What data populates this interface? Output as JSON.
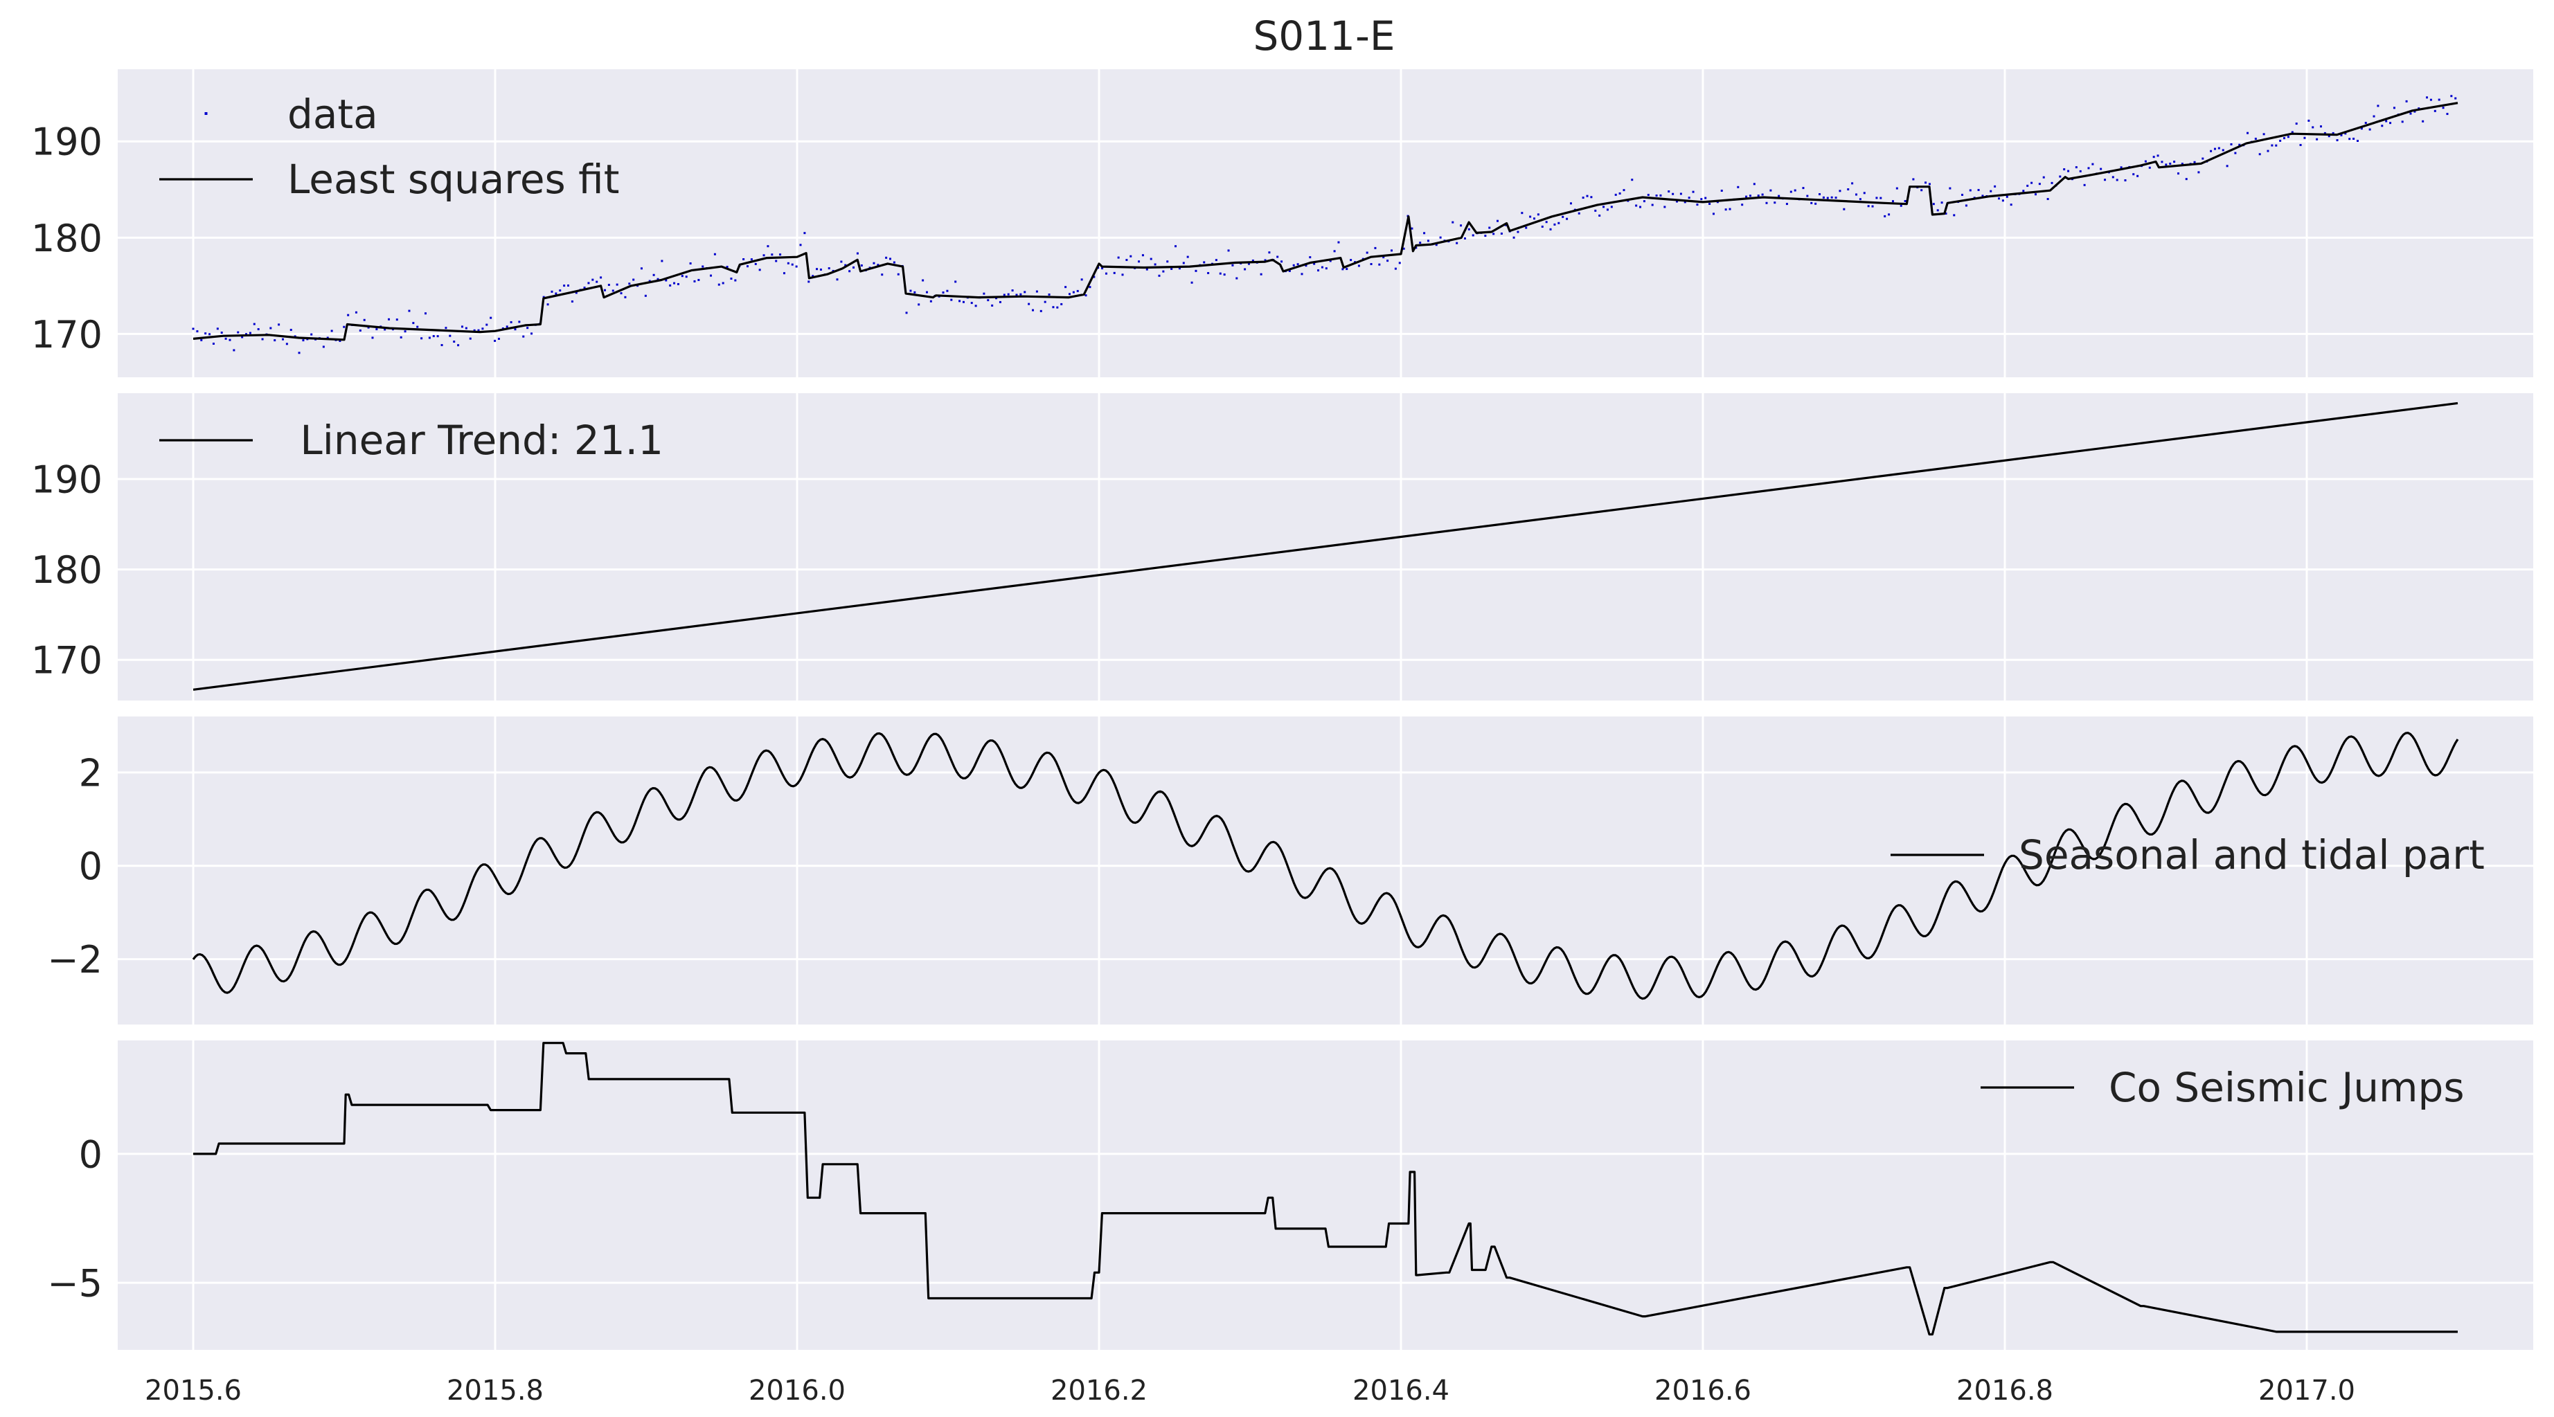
{
  "figure": {
    "title": "S011-E"
  },
  "colors": {
    "panel_bg": "#eaeaf2",
    "grid": "#ffffff",
    "line": "#000000",
    "data_dots": "#0000cc",
    "text": "#222222"
  },
  "chart_data": [
    {
      "type": "scatter",
      "title": "S011-E",
      "xlim": [
        2015.55,
        2017.15
      ],
      "ylim": [
        165.5,
        197.5
      ],
      "yticks": [
        170,
        180,
        190
      ],
      "grid": true,
      "legend": {
        "placement": "top-left",
        "entries": [
          "data",
          "Least squares fit"
        ]
      },
      "series": [
        {
          "name": "data",
          "style": "points",
          "color": "#0000cc"
        },
        {
          "name": "Least squares fit",
          "style": "line",
          "x": [
            2015.6,
            2015.62,
            2015.65,
            2015.67,
            2015.7,
            2015.702,
            2015.73,
            2015.76,
            2015.79,
            2015.8,
            2015.82,
            2015.83,
            2015.832,
            2015.85,
            2015.87,
            2015.872,
            2015.89,
            2015.91,
            2015.93,
            2015.95,
            2015.96,
            2015.962,
            2015.98,
            2016.0,
            2016.006,
            2016.008,
            2016.02,
            2016.03,
            2016.04,
            2016.042,
            2016.06,
            2016.07,
            2016.072,
            2016.09,
            2016.092,
            2016.12,
            2016.15,
            2016.18,
            2016.19,
            2016.2,
            2016.202,
            2016.23,
            2016.26,
            2016.29,
            2016.31,
            2016.315,
            2016.32,
            2016.322,
            2016.34,
            2016.36,
            2016.362,
            2016.38,
            2016.4,
            2016.405,
            2016.408,
            2016.41,
            2016.42,
            2016.44,
            2016.445,
            2016.45,
            2016.46,
            2016.47,
            2016.472,
            2016.5,
            2016.53,
            2016.56,
            2016.6,
            2016.64,
            2016.68,
            2016.72,
            2016.735,
            2016.737,
            2016.75,
            2016.752,
            2016.76,
            2016.762,
            2016.79,
            2016.83,
            2016.84,
            2016.842,
            2016.86,
            2016.89,
            2016.9,
            2016.902,
            2016.93,
            2016.96,
            2016.99,
            2017.02,
            2017.05,
            2017.07,
            2017.1
          ],
          "values": [
            169.5,
            169.8,
            169.9,
            169.6,
            169.4,
            171.0,
            170.6,
            170.4,
            170.2,
            170.3,
            170.9,
            171.0,
            173.7,
            174.3,
            175.0,
            173.8,
            175.0,
            175.6,
            176.6,
            177.0,
            176.4,
            177.2,
            177.9,
            178.0,
            178.4,
            175.8,
            176.2,
            176.8,
            177.7,
            176.5,
            177.3,
            177.0,
            174.2,
            173.8,
            174.0,
            173.8,
            173.9,
            173.8,
            174.1,
            177.3,
            177.0,
            176.9,
            177.0,
            177.4,
            177.5,
            177.7,
            177.2,
            176.5,
            177.4,
            177.9,
            176.9,
            178.0,
            178.3,
            182.2,
            178.6,
            179.2,
            179.3,
            180.0,
            181.6,
            180.5,
            180.6,
            181.5,
            180.7,
            182.2,
            183.4,
            184.2,
            183.7,
            184.2,
            183.9,
            183.6,
            183.5,
            185.3,
            185.3,
            182.4,
            182.5,
            183.6,
            184.3,
            184.9,
            186.3,
            186.1,
            186.6,
            187.5,
            187.9,
            187.3,
            187.7,
            189.8,
            190.8,
            190.7,
            192.2,
            193.2,
            194.0
          ]
        }
      ]
    },
    {
      "type": "line",
      "xlim": [
        2015.55,
        2017.15
      ],
      "ylim": [
        165.5,
        199.5
      ],
      "yticks": [
        170,
        180,
        190
      ],
      "grid": true,
      "legend": {
        "placement": "top-left",
        "entries": [
          " Linear Trend: 21.1"
        ]
      },
      "series": [
        {
          "name": " Linear Trend: 21.1",
          "x": [
            2015.6,
            2017.1
          ],
          "values": [
            166.7,
            198.4
          ]
        }
      ]
    },
    {
      "type": "line",
      "xlim": [
        2015.55,
        2017.15
      ],
      "ylim": [
        -3.4,
        3.2
      ],
      "yticks": [
        -2,
        0,
        2
      ],
      "grid": true,
      "legend": {
        "placement": "center-right",
        "entries": [
          "Seasonal and tidal part"
        ]
      },
      "series": [
        {
          "name": "Seasonal and tidal part",
          "model": {
            "annual_amplitude": 2.4,
            "period_years": 1.0,
            "peak_at": 2016.07,
            "ripple_amplitude": 0.45,
            "ripple_period_years": 0.0375,
            "x_range": [
              2015.6,
              2017.1
            ]
          }
        }
      ]
    },
    {
      "type": "line",
      "xlim": [
        2015.55,
        2017.15
      ],
      "ylim": [
        -7.6,
        4.4
      ],
      "yticks": [
        -5,
        0
      ],
      "xticks": [
        2015.6,
        2015.8,
        2016.0,
        2016.2,
        2016.4,
        2016.6,
        2016.8,
        2017.0
      ],
      "xticklabels": [
        "2015.6",
        "2015.8",
        "2016.0",
        "2016.2",
        "2016.4",
        "2016.6",
        "2016.8",
        "2017.0"
      ],
      "grid": true,
      "legend": {
        "placement": "top-right",
        "entries": [
          "Co Seismic Jumps"
        ]
      },
      "series": [
        {
          "name": "Co Seismic Jumps",
          "x": [
            2015.6,
            2015.615,
            2015.617,
            2015.7,
            2015.701,
            2015.703,
            2015.705,
            2015.795,
            2015.797,
            2015.83,
            2015.832,
            2015.845,
            2015.847,
            2015.86,
            2015.862,
            2015.955,
            2015.957,
            2016.005,
            2016.007,
            2016.015,
            2016.017,
            2016.04,
            2016.042,
            2016.085,
            2016.087,
            2016.195,
            2016.197,
            2016.2,
            2016.202,
            2016.31,
            2016.312,
            2016.315,
            2016.317,
            2016.35,
            2016.352,
            2016.39,
            2016.392,
            2016.405,
            2016.406,
            2016.409,
            2016.41,
            2016.411,
            2016.43,
            2016.432,
            2016.445,
            2016.446,
            2016.447,
            2016.448,
            2016.455,
            2016.456,
            2016.46,
            2016.462,
            2016.47,
            2016.472,
            2016.56,
            2016.562,
            2016.735,
            2016.737,
            2016.75,
            2016.752,
            2016.76,
            2016.762,
            2016.83,
            2016.832,
            2016.89,
            2016.892,
            2016.98,
            2016.982,
            2017.1
          ],
          "values": [
            0,
            0,
            0.4,
            0.4,
            2.3,
            2.3,
            1.9,
            1.9,
            1.7,
            1.7,
            4.3,
            4.3,
            3.9,
            3.9,
            2.9,
            2.9,
            1.6,
            1.6,
            -1.7,
            -1.7,
            -0.4,
            -0.4,
            -2.3,
            -2.3,
            -5.6,
            -5.6,
            -4.6,
            -4.6,
            -2.3,
            -2.3,
            -1.7,
            -1.7,
            -2.9,
            -2.9,
            -3.6,
            -3.6,
            -2.7,
            -2.7,
            -0.7,
            -0.7,
            -4.7,
            -4.7,
            -4.6,
            -4.6,
            -2.7,
            -2.7,
            -4.5,
            -4.5,
            -4.5,
            -4.5,
            -3.6,
            -3.6,
            -4.8,
            -4.8,
            -6.3,
            -6.3,
            -4.4,
            -4.4,
            -7.0,
            -7.0,
            -5.2,
            -5.2,
            -4.2,
            -4.2,
            -5.9,
            -5.9,
            -6.9,
            -6.9,
            -6.9
          ]
        }
      ]
    }
  ]
}
